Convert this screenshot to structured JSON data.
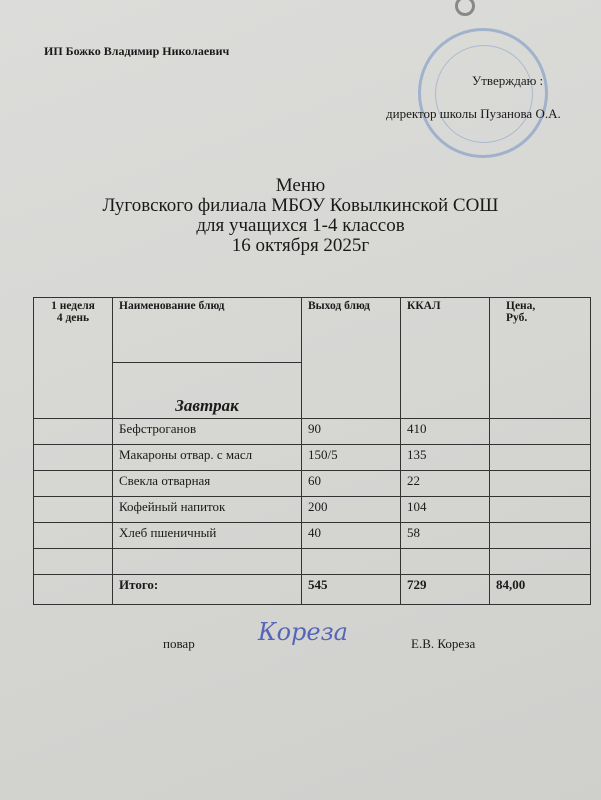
{
  "header": {
    "organization": "ИП Божко Владимир Николаевич",
    "approve": "Утверждаю  :",
    "director": "директор  школы  Пузанова О.А."
  },
  "title": {
    "line1": "Меню",
    "line2": "Луговского филиала МБОУ Ковылкинской СОШ",
    "line3": "для учащихся 1-4 классов",
    "line4": "16 октября  2025г"
  },
  "table": {
    "headers": {
      "day": "1 неделя\n 4  день",
      "name": "Наименование блюд",
      "yield": "Выход блюд",
      "kcal": "ККАЛ",
      "price": "Цена,\nРуб."
    },
    "meal": "Завтрак",
    "rows": [
      {
        "name": "Бефстроганов",
        "yield": "90",
        "kcal": "410"
      },
      {
        "name": "Макароны отвар. с масл",
        "yield": "150/5",
        "kcal": "135"
      },
      {
        "name": "Свекла отварная",
        "yield": "60",
        "kcal": "22"
      },
      {
        "name": "Кофейный напиток",
        "yield": "200",
        "kcal": "104"
      },
      {
        "name": "Хлеб пшеничный",
        "yield": "40",
        "kcal": "58"
      }
    ],
    "total": {
      "label": "Итого:",
      "yield": "545",
      "kcal": "729",
      "price": "84,00"
    }
  },
  "footer": {
    "cook_label": "повар",
    "signature": "Кореза",
    "cook_name": "Е.В. Кореза"
  }
}
